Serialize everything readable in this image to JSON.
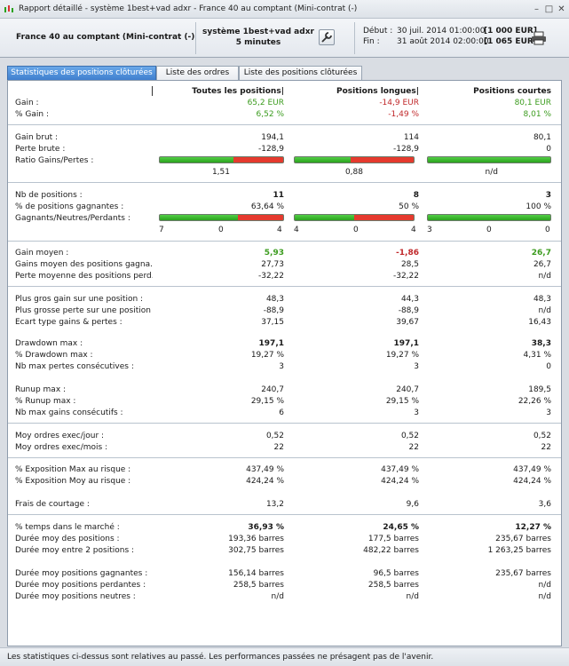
{
  "window": {
    "title": "Rapport détaillé - système 1best+vad adxr  - France 40 au comptant (Mini-contrat  (-)"
  },
  "header": {
    "instrument": "France 40 au comptant (Mini-contrat  (-)",
    "system_line1": "système 1best+vad adxr",
    "system_line2": "5 minutes",
    "start_label": "Début :",
    "start_date": "30 juil. 2014 01:00:00",
    "start_amount": "[1 000 EUR]",
    "end_label": "Fin :",
    "end_date": "31 août 2014 02:00:00",
    "end_amount": "[1 065 EUR]"
  },
  "tabs": [
    {
      "label": "Statistiques des positions clôturées",
      "active": true
    },
    {
      "label": "Liste des ordres",
      "active": false
    },
    {
      "label": "Liste des positions clôturées",
      "active": false
    }
  ],
  "columns": {
    "all": "Toutes les positions|",
    "long": "Positions longues|",
    "short": "Positions courtes"
  },
  "stats": {
    "gain": {
      "label": "Gain :",
      "all": "65,2 EUR",
      "long": "-14,9 EUR",
      "short": "80,1 EUR"
    },
    "pct_gain": {
      "label": "% Gain :",
      "all": "6,52 %",
      "long": "-1,49 %",
      "short": "8,01 %"
    },
    "gross_gain": {
      "label": "Gain brut :",
      "all": "194,1",
      "long": "114",
      "short": "80,1"
    },
    "gross_loss": {
      "label": "Perte brute :",
      "all": "-128,9",
      "long": "-128,9",
      "short": "0"
    },
    "ratio": {
      "label": "Ratio Gains/Pertes :",
      "all": "1,51",
      "long": "0,88",
      "short": "n/d",
      "bar_all": 0.6,
      "bar_long": 0.47,
      "bar_short": 1.0
    },
    "nb_positions": {
      "label": "Nb de positions :",
      "all": "11",
      "long": "8",
      "short": "3"
    },
    "pct_winning": {
      "label": "% de positions gagnantes :",
      "all": "63,64 %",
      "long": "50 %",
      "short": "100 %"
    },
    "gnp": {
      "label": "Gagnants/Neutres/Perdants :",
      "all": {
        "w": "7",
        "n": "0",
        "l": "4",
        "w_frac": 0.636
      },
      "long": {
        "w": "4",
        "n": "0",
        "l": "4",
        "w_frac": 0.5
      },
      "short": {
        "w": "3",
        "n": "0",
        "l": "0",
        "w_frac": 1.0
      }
    },
    "avg_gain": {
      "label": "Gain moyen :",
      "all": "5,93",
      "long": "-1,86",
      "short": "26,7"
    },
    "avg_win": {
      "label": "Gains moyen des positions gagna...",
      "all": "27,73",
      "long": "28,5",
      "short": "26,7"
    },
    "avg_loss": {
      "label": "Perte moyenne des positions perd...",
      "all": "-32,22",
      "long": "-32,22",
      "short": "n/d"
    },
    "max_win": {
      "label": "Plus gros gain sur une position :",
      "all": "48,3",
      "long": "44,3",
      "short": "48,3"
    },
    "max_loss": {
      "label": "Plus grosse perte sur une position :",
      "all": "-88,9",
      "long": "-88,9",
      "short": "n/d"
    },
    "std": {
      "label": "Ecart type gains & pertes :",
      "all": "37,15",
      "long": "39,67",
      "short": "16,43"
    },
    "dd_max": {
      "label": "Drawdown max :",
      "all": "197,1",
      "long": "197,1",
      "short": "38,3"
    },
    "pct_dd": {
      "label": "% Drawdown max :",
      "all": "19,27 %",
      "long": "19,27 %",
      "short": "4,31 %"
    },
    "max_consec_loss": {
      "label": "Nb max pertes consécutives :",
      "all": "3",
      "long": "3",
      "short": "0"
    },
    "runup_max": {
      "label": "Runup max :",
      "all": "240,7",
      "long": "240,7",
      "short": "189,5"
    },
    "pct_runup": {
      "label": "% Runup max :",
      "all": "29,15 %",
      "long": "29,15 %",
      "short": "22,26 %"
    },
    "max_consec_win": {
      "label": "Nb max gains consécutifs :",
      "all": "6",
      "long": "3",
      "short": "3"
    },
    "orders_day": {
      "label": "Moy ordres exec/jour :",
      "all": "0,52",
      "long": "0,52",
      "short": "0,52"
    },
    "orders_month": {
      "label": "Moy ordres exec/mois :",
      "all": "22",
      "long": "22",
      "short": "22"
    },
    "exp_max": {
      "label": "% Exposition Max au risque :",
      "all": "437,49 %",
      "long": "437,49 %",
      "short": "437,49 %"
    },
    "exp_avg": {
      "label": "% Exposition Moy au risque :",
      "all": "424,24 %",
      "long": "424,24 %",
      "short": "424,24 %"
    },
    "fees": {
      "label": "Frais de courtage :",
      "all": "13,2",
      "long": "9,6",
      "short": "3,6"
    },
    "time_market": {
      "label": "% temps dans le marché :",
      "all": "36,93 %",
      "long": "24,65 %",
      "short": "12,27 %"
    },
    "avg_duration": {
      "label": "Durée moy des positions :",
      "all": "193,36 barres",
      "long": "177,5 barres",
      "short": "235,67 barres"
    },
    "avg_between": {
      "label": "Durée moy entre 2 positions :",
      "all": "302,75 barres",
      "long": "482,22 barres",
      "short": "1 263,25 barres"
    },
    "dur_winning": {
      "label": "Durée moy positions gagnantes :",
      "all": "156,14 barres",
      "long": "96,5 barres",
      "short": "235,67 barres"
    },
    "dur_losing": {
      "label": "Durée moy positions perdantes :",
      "all": "258,5 barres",
      "long": "258,5 barres",
      "short": "n/d"
    },
    "dur_neutral": {
      "label": "Durée moy positions neutres :",
      "all": "n/d",
      "long": "n/d",
      "short": "n/d"
    }
  },
  "footer": {
    "text": "Les statistiques ci-dessus sont relatives au passé. Les performances passées ne présagent pas de l'avenir."
  },
  "colors": {
    "positive": "#3c9c1f",
    "negative": "#c0282a",
    "tab_active": "#4a8ad8"
  },
  "icons": {
    "app": "chart-candles-icon",
    "settings": "wrench-icon",
    "print": "printer-icon"
  }
}
